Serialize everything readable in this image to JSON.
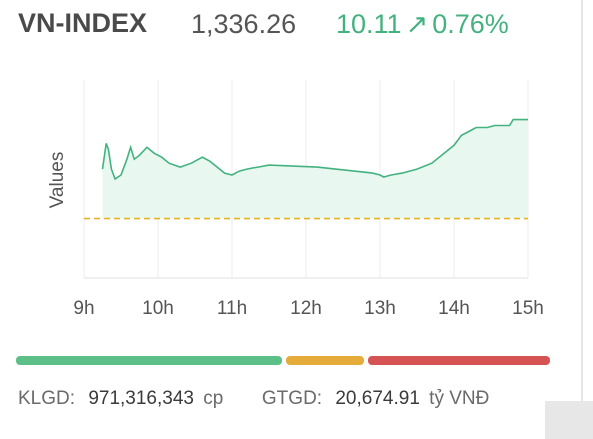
{
  "index": {
    "name": "VN-INDEX",
    "price": "1,336.26",
    "change": "10.11",
    "arrow": "↗",
    "change_pct": "0.76%"
  },
  "colors": {
    "up": "#43b27f",
    "line": "#43b27f",
    "fill": "#e8f7ef",
    "ref": "#e6b422",
    "bar_green": "#5cbf87",
    "bar_yellow": "#e5ac3b",
    "bar_red": "#d65353"
  },
  "chart_data": {
    "type": "area",
    "ylabel": "Values",
    "x_ticks": [
      "9h",
      "10h",
      "11h",
      "12h",
      "13h",
      "14h",
      "15h"
    ],
    "reference_line": "dashed",
    "series": [
      {
        "points": [
          [
            9.25,
            0.55
          ],
          [
            9.3,
            0.68
          ],
          [
            9.33,
            0.65
          ],
          [
            9.37,
            0.55
          ],
          [
            9.42,
            0.5
          ],
          [
            9.5,
            0.52
          ],
          [
            9.58,
            0.6
          ],
          [
            9.63,
            0.66
          ],
          [
            9.68,
            0.6
          ],
          [
            9.75,
            0.62
          ],
          [
            9.85,
            0.66
          ],
          [
            9.95,
            0.63
          ],
          [
            10.05,
            0.61
          ],
          [
            10.15,
            0.58
          ],
          [
            10.3,
            0.56
          ],
          [
            10.45,
            0.58
          ],
          [
            10.6,
            0.61
          ],
          [
            10.7,
            0.59
          ],
          [
            10.8,
            0.56
          ],
          [
            10.9,
            0.53
          ],
          [
            11.0,
            0.52
          ],
          [
            11.1,
            0.54
          ],
          [
            11.2,
            0.55
          ],
          [
            11.35,
            0.56
          ],
          [
            11.5,
            0.57
          ],
          [
            12.15,
            0.56
          ],
          [
            12.9,
            0.53
          ],
          [
            13.0,
            0.52
          ],
          [
            13.05,
            0.51
          ],
          [
            13.15,
            0.52
          ],
          [
            13.3,
            0.53
          ],
          [
            13.5,
            0.55
          ],
          [
            13.7,
            0.58
          ],
          [
            13.9,
            0.64
          ],
          [
            14.0,
            0.67
          ],
          [
            14.1,
            0.72
          ],
          [
            14.2,
            0.74
          ],
          [
            14.3,
            0.76
          ],
          [
            14.45,
            0.76
          ],
          [
            14.55,
            0.77
          ],
          [
            14.75,
            0.77
          ],
          [
            14.8,
            0.8
          ]
        ]
      }
    ]
  },
  "range_bar": [
    "green",
    "yellow",
    "red"
  ],
  "footer": {
    "klgd_label": "KLGD:",
    "klgd_value": "971,316,343",
    "klgd_unit": "cp",
    "gtgd_label": "GTGD:",
    "gtgd_value": "20,674.91",
    "gtgd_unit": "tỷ VNĐ"
  }
}
